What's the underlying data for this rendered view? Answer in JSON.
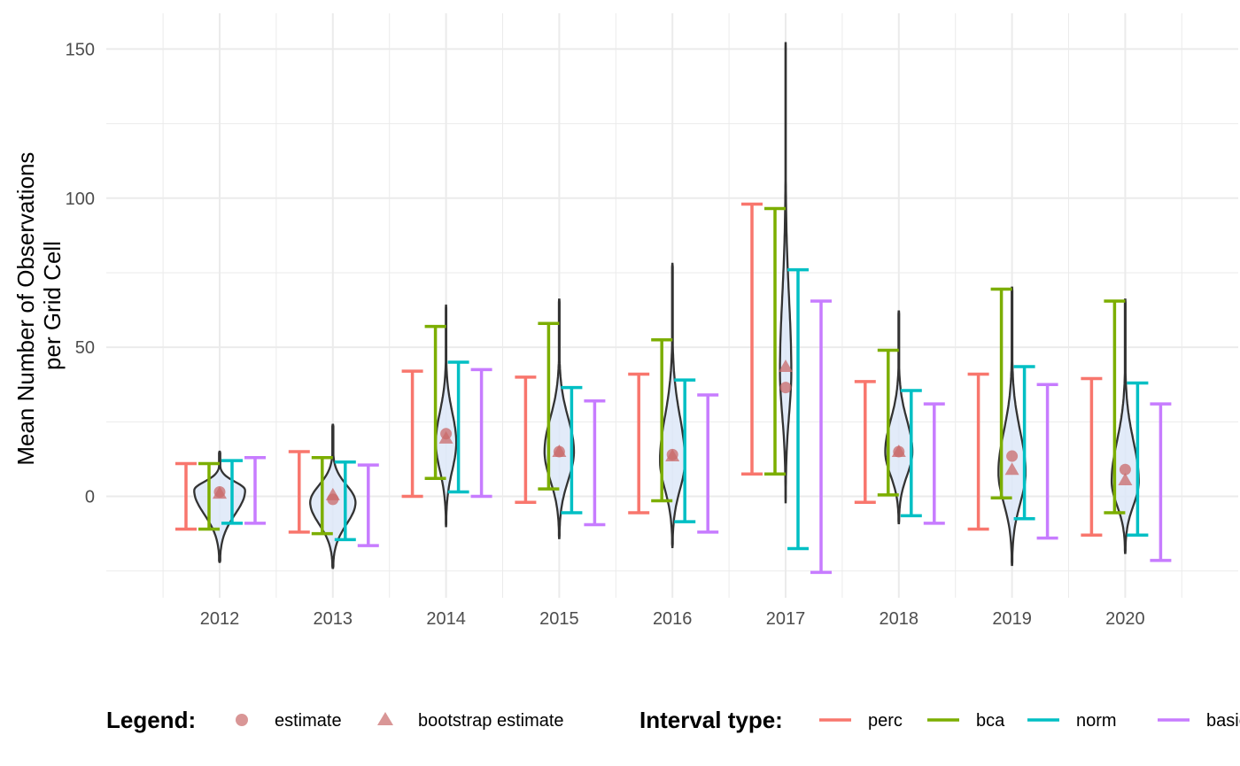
{
  "chart_data": {
    "type": "violin+errorbar",
    "ylabel_lines": [
      "Mean Number of Observations",
      "per Grid Cell"
    ],
    "xlabel": "",
    "categories": [
      "2012",
      "2013",
      "2014",
      "2015",
      "2016",
      "2017",
      "2018",
      "2019",
      "2020"
    ],
    "y_ticks": [
      0,
      50,
      100,
      150
    ],
    "ylim": [
      -34,
      162
    ],
    "grid": true,
    "legend_position": "bottom",
    "violins": [
      {
        "year": "2012",
        "min": -22,
        "max": 15,
        "mode": 2,
        "width": 0.45
      },
      {
        "year": "2013",
        "min": -24,
        "max": 24,
        "mode": -2,
        "width": 0.4
      },
      {
        "year": "2014",
        "min": -10,
        "max": 64,
        "mode": 18,
        "width": 0.18
      },
      {
        "year": "2015",
        "min": -14,
        "max": 66,
        "mode": 15,
        "width": 0.26
      },
      {
        "year": "2016",
        "min": -17,
        "max": 78,
        "mode": 12,
        "width": 0.22
      },
      {
        "year": "2017",
        "min": -2,
        "max": 152,
        "mode": 42,
        "width": 0.1
      },
      {
        "year": "2018",
        "min": -9,
        "max": 62,
        "mode": 15,
        "width": 0.24
      },
      {
        "year": "2019",
        "min": -23,
        "max": 70,
        "mode": 8,
        "width": 0.24
      },
      {
        "year": "2020",
        "min": -19,
        "max": 66,
        "mode": 5,
        "width": 0.24
      }
    ],
    "estimate": [
      1.5,
      -1.0,
      21.0,
      15.0,
      14.0,
      36.5,
      15.0,
      13.5,
      9.0
    ],
    "bootstrap_estimate": [
      1.0,
      0.5,
      19.5,
      15.0,
      13.5,
      43.5,
      15.0,
      9.0,
      5.5
    ],
    "intervals": {
      "perc": {
        "lower": [
          -11,
          -12,
          0,
          -2,
          -5.5,
          7.5,
          -2,
          -11,
          -13
        ],
        "upper": [
          11,
          15,
          42,
          40,
          41,
          98,
          38.5,
          41,
          39.5
        ]
      },
      "bca": {
        "lower": [
          -11,
          -12.5,
          6,
          2.5,
          -1.5,
          7.5,
          0.5,
          -0.5,
          -5.5
        ],
        "upper": [
          11,
          13,
          57,
          58,
          52.5,
          96.5,
          49,
          69.5,
          65.5
        ]
      },
      "norm": {
        "lower": [
          -9,
          -14.5,
          1.5,
          -5.5,
          -8.5,
          -17.5,
          -6.5,
          -7.5,
          -13
        ],
        "upper": [
          12,
          11.5,
          45,
          36.5,
          39,
          76,
          35.5,
          43.5,
          38
        ]
      },
      "basic": {
        "lower": [
          -9,
          -16.5,
          0,
          -9.5,
          -12,
          -25.5,
          -9,
          -14,
          -21.5
        ],
        "upper": [
          13,
          10.5,
          42.5,
          32,
          34,
          65.5,
          31,
          37.5,
          31
        ]
      }
    }
  },
  "colors": {
    "perc": "#F8766D",
    "bca": "#7CAE00",
    "norm": "#00BFC4",
    "basic": "#C77CFF",
    "violin_fill": "#dde8f8",
    "violin_line": "#333333",
    "estimate": "#c96a6a",
    "grid": "#ebebeb"
  },
  "legend": {
    "legend_title": "Legend:",
    "estimate_label": "estimate",
    "bootstrap_label": "bootstrap estimate",
    "interval_title": "Interval type:",
    "perc_label": "perc",
    "bca_label": "bca",
    "norm_label": "norm",
    "basic_label": "basic"
  }
}
